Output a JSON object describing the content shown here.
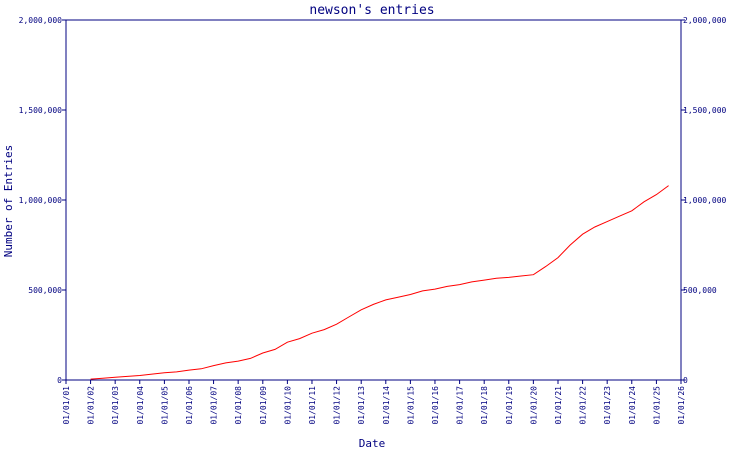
{
  "chart_data": {
    "type": "line",
    "title": "newson's entries",
    "xlabel": "Date",
    "ylabel": "Number of Entries",
    "x_ticks": [
      "01/01/01",
      "01/01/02",
      "01/01/03",
      "01/01/04",
      "01/01/05",
      "01/01/06",
      "01/01/07",
      "01/01/08",
      "01/01/09",
      "01/01/10",
      "01/01/11",
      "01/01/12",
      "01/01/13",
      "01/01/14",
      "01/01/15",
      "01/01/16",
      "01/01/17",
      "01/01/18",
      "01/01/19",
      "01/01/20",
      "01/01/21",
      "01/01/22",
      "01/01/23",
      "01/01/24",
      "01/01/25",
      "01/01/26"
    ],
    "y_ticks": [
      "0",
      "500,000",
      "1,000,000",
      "1,500,000",
      "2,000,000"
    ],
    "y_tick_values": [
      0,
      500000,
      1000000,
      1500000,
      2000000
    ],
    "ylim": [
      0,
      2000000
    ],
    "xlim": [
      "2001-01-01",
      "2026-01-01"
    ],
    "right_axis": true,
    "grid": false,
    "colors": {
      "axis": "#000080",
      "line": "#ff0000",
      "background": "#ffffff"
    },
    "series": [
      {
        "x": [
          "2002-01-01",
          "2002-07-01",
          "2003-01-01",
          "2003-07-01",
          "2004-01-01",
          "2004-07-01",
          "2005-01-01",
          "2005-07-01",
          "2006-01-01",
          "2006-07-01",
          "2007-01-01",
          "2007-07-01",
          "2008-01-01",
          "2008-07-01",
          "2009-01-01",
          "2009-07-01",
          "2010-01-01",
          "2010-07-01",
          "2011-01-01",
          "2011-07-01",
          "2012-01-01",
          "2012-07-01",
          "2013-01-01",
          "2013-07-01",
          "2014-01-01",
          "2014-07-01",
          "2015-01-01",
          "2015-07-01",
          "2016-01-01",
          "2016-07-01",
          "2017-01-01",
          "2017-07-01",
          "2018-01-01",
          "2018-07-01",
          "2019-01-01",
          "2019-07-01",
          "2020-01-01",
          "2020-07-01",
          "2021-01-01",
          "2021-07-01",
          "2022-01-01",
          "2022-07-01",
          "2023-01-01",
          "2023-07-01",
          "2024-01-01",
          "2024-07-01",
          "2025-01-01",
          "2025-07-01"
        ],
        "y": [
          5000,
          10000,
          15000,
          20000,
          25000,
          33000,
          40000,
          45000,
          55000,
          62000,
          80000,
          95000,
          105000,
          120000,
          150000,
          170000,
          210000,
          230000,
          260000,
          280000,
          310000,
          350000,
          390000,
          420000,
          445000,
          460000,
          475000,
          495000,
          505000,
          520000,
          530000,
          545000,
          555000,
          565000,
          570000,
          578000,
          585000,
          630000,
          680000,
          750000,
          810000,
          850000,
          880000,
          910000,
          940000,
          990000,
          1030000,
          1080000
        ]
      }
    ]
  }
}
